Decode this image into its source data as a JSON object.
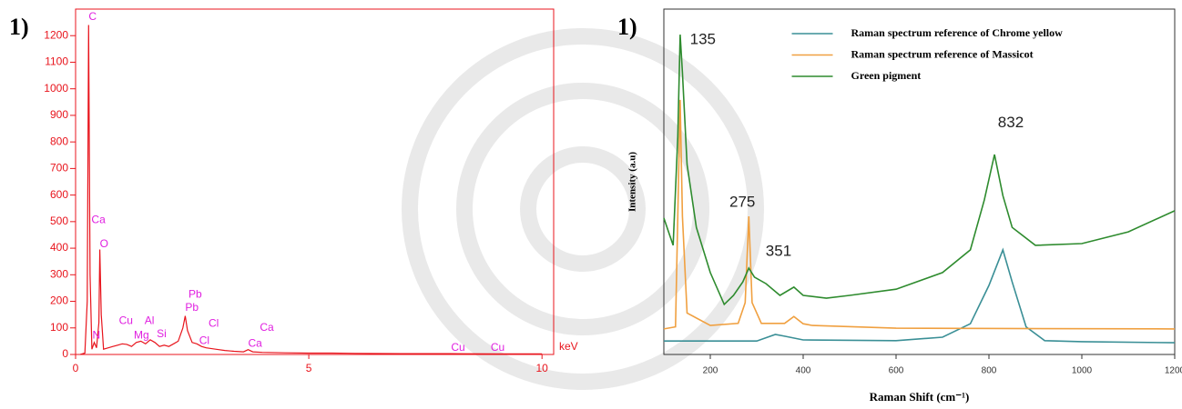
{
  "chart_data": [
    {
      "type": "line",
      "panel_label": "1)",
      "xlabel": "keV",
      "color": "#e8141c",
      "label_color": "#e020e0",
      "xlim": [
        0,
        10.25
      ],
      "ylim": [
        0,
        1300
      ],
      "xticks": [
        0,
        5,
        10
      ],
      "yticks": [
        0,
        100,
        200,
        300,
        400,
        500,
        600,
        700,
        800,
        900,
        1000,
        1100,
        1200
      ],
      "x": [
        0.1,
        0.2,
        0.25,
        0.28,
        0.31,
        0.35,
        0.4,
        0.45,
        0.5,
        0.52,
        0.55,
        0.6,
        0.7,
        0.8,
        0.9,
        1.0,
        1.1,
        1.2,
        1.3,
        1.4,
        1.5,
        1.6,
        1.7,
        1.8,
        1.9,
        2.0,
        2.1,
        2.2,
        2.3,
        2.35,
        2.4,
        2.5,
        2.6,
        2.7,
        2.8,
        3.0,
        3.2,
        3.4,
        3.6,
        3.7,
        3.8,
        4.0,
        4.5,
        5.0,
        5.5,
        6,
        7,
        8,
        9,
        10
      ],
      "values": [
        0,
        5,
        200,
        1240,
        300,
        20,
        45,
        25,
        120,
        395,
        150,
        20,
        25,
        30,
        35,
        40,
        38,
        30,
        45,
        50,
        40,
        55,
        45,
        30,
        35,
        30,
        40,
        50,
        100,
        145,
        90,
        45,
        40,
        30,
        25,
        20,
        15,
        12,
        10,
        18,
        10,
        8,
        6,
        5,
        5,
        4,
        3,
        3,
        2,
        2
      ],
      "annotations": [
        {
          "text": "C",
          "x": 0.28,
          "y": 1270
        },
        {
          "text": "Ca",
          "x": 0.34,
          "y": 505
        },
        {
          "text": "O",
          "x": 0.52,
          "y": 415
        },
        {
          "text": "N",
          "x": 0.36,
          "y": 70
        },
        {
          "text": "Cu",
          "x": 0.93,
          "y": 125
        },
        {
          "text": "Mg",
          "x": 1.25,
          "y": 70
        },
        {
          "text": "Al",
          "x": 1.48,
          "y": 125
        },
        {
          "text": "Si",
          "x": 1.74,
          "y": 75
        },
        {
          "text": "Pb",
          "x": 2.42,
          "y": 225
        },
        {
          "text": "Pb",
          "x": 2.35,
          "y": 175
        },
        {
          "text": "Cl",
          "x": 2.85,
          "y": 115
        },
        {
          "text": "Cl",
          "x": 2.65,
          "y": 50
        },
        {
          "text": "Ca",
          "x": 3.95,
          "y": 100
        },
        {
          "text": "Ca",
          "x": 3.7,
          "y": 40
        },
        {
          "text": "Cu",
          "x": 8.05,
          "y": 25
        },
        {
          "text": "Cu",
          "x": 8.9,
          "y": 25
        }
      ]
    },
    {
      "type": "line",
      "panel_label": "1)",
      "xlabel": "Raman Shift (cm⁻¹)",
      "ylabel": "Intensity (a.u)",
      "xlim": [
        100,
        1200
      ],
      "ylim": [
        0,
        100
      ],
      "xticks": [
        200,
        400,
        600,
        800,
        1000,
        1200
      ],
      "legend": "upper center",
      "series": [
        {
          "name": "Raman spectrum reference  of Chrome yellow",
          "color": "#3a8f96",
          "x": [
            100,
            300,
            340,
            360,
            400,
            600,
            700,
            760,
            800,
            830,
            850,
            880,
            920,
            1000,
            1200
          ],
          "values": [
            3.9,
            3.9,
            5.8,
            5.3,
            4.2,
            4,
            5,
            8.9,
            20,
            30.3,
            21,
            8,
            4,
            3.7,
            3.4
          ]
        },
        {
          "name": "Raman spectrum reference of Massicot",
          "color": "#f0a040",
          "x": [
            100,
            125,
            130,
            135,
            140,
            150,
            200,
            260,
            275,
            283,
            290,
            310,
            360,
            380,
            400,
            420,
            600,
            1200
          ],
          "values": [
            7.4,
            8,
            40,
            73.7,
            40,
            12,
            8.4,
            9,
            15,
            40,
            15,
            9,
            9,
            11,
            8.9,
            8.4,
            7.6,
            7.4
          ]
        },
        {
          "name": "Green pigment",
          "color": "#2e8b2e",
          "x": [
            100,
            120,
            130,
            135,
            140,
            150,
            170,
            200,
            230,
            250,
            270,
            283,
            295,
            320,
            350,
            380,
            400,
            450,
            500,
            600,
            700,
            760,
            790,
            812,
            830,
            850,
            900,
            1000,
            1100,
            1200
          ],
          "values": [
            39.5,
            31.6,
            63,
            92.6,
            81.6,
            55,
            36.8,
            23.7,
            14.5,
            17.1,
            21,
            25,
            22.4,
            20.5,
            17.1,
            19.5,
            17.1,
            16.3,
            17.1,
            18.9,
            23.7,
            30.3,
            44.7,
            57.9,
            46,
            36.8,
            31.6,
            32.1,
            35.5,
            41.6
          ]
        }
      ],
      "annotations": [
        {
          "text": "135",
          "x": 184,
          "y": 91
        },
        {
          "text": "275",
          "x": 269,
          "y": 44
        },
        {
          "text": "351",
          "x": 347,
          "y": 29.7
        },
        {
          "text": "832",
          "x": 847,
          "y": 67
        }
      ]
    }
  ]
}
